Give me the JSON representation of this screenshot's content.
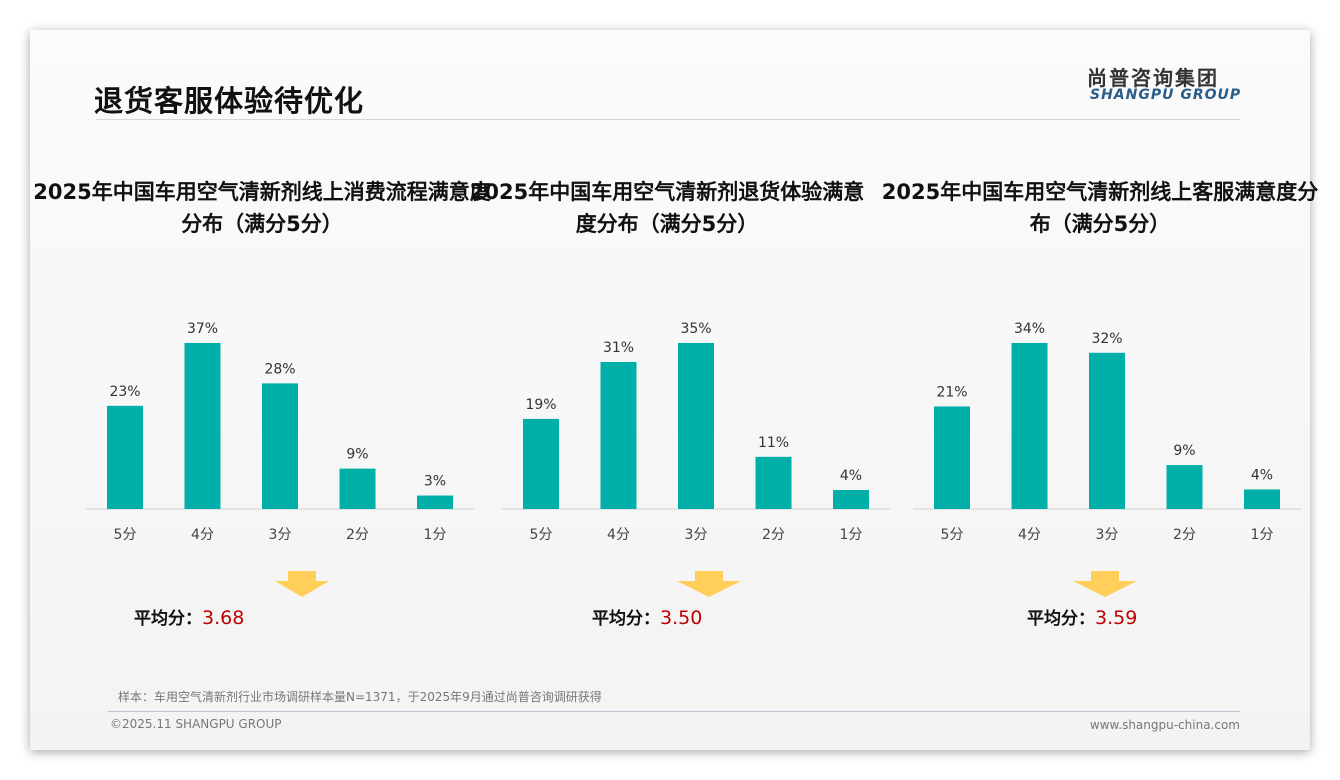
{
  "header": {
    "title": "退货客服体验待优化",
    "logo_cn": "尚普咨询集团",
    "logo_en": "SHANGPU GROUP"
  },
  "colors": {
    "bar": "#00b0a8",
    "arrow": "#ffcf5a",
    "avg_value": "#c00000"
  },
  "chart_data": [
    {
      "type": "bar",
      "title": "2025年中国车用空气清新剂线上消费流程满意度分布（满分5分）",
      "categories": [
        "5分",
        "4分",
        "3分",
        "2分",
        "1分"
      ],
      "values": [
        23,
        37,
        28,
        9,
        3
      ],
      "labels": [
        "23%",
        "37%",
        "28%",
        "9%",
        "3%"
      ],
      "ylim": [
        0,
        37
      ],
      "avg_label": "平均分：",
      "avg_value": "3.68"
    },
    {
      "type": "bar",
      "title": "2025年中国车用空气清新剂退货体验满意度分布（满分5分）",
      "categories": [
        "5分",
        "4分",
        "3分",
        "2分",
        "1分"
      ],
      "values": [
        19,
        31,
        35,
        11,
        4
      ],
      "labels": [
        "19%",
        "31%",
        "35%",
        "11%",
        "4%"
      ],
      "ylim": [
        0,
        35
      ],
      "avg_label": "平均分：",
      "avg_value": "3.50"
    },
    {
      "type": "bar",
      "title": "2025年中国车用空气清新剂线上客服满意度分布（满分5分）",
      "categories": [
        "5分",
        "4分",
        "3分",
        "2分",
        "1分"
      ],
      "values": [
        21,
        34,
        32,
        9,
        4
      ],
      "labels": [
        "21%",
        "34%",
        "32%",
        "9%",
        "4%"
      ],
      "ylim": [
        0,
        34
      ],
      "avg_label": "平均分：",
      "avg_value": "3.59"
    }
  ],
  "footer": {
    "note": "样本：车用空气清新剂行业市场调研样本量N=1371，于2025年9月通过尚普咨询调研获得",
    "copyright": "©2025.11 SHANGPU GROUP",
    "website": "www.shangpu-china.com"
  }
}
